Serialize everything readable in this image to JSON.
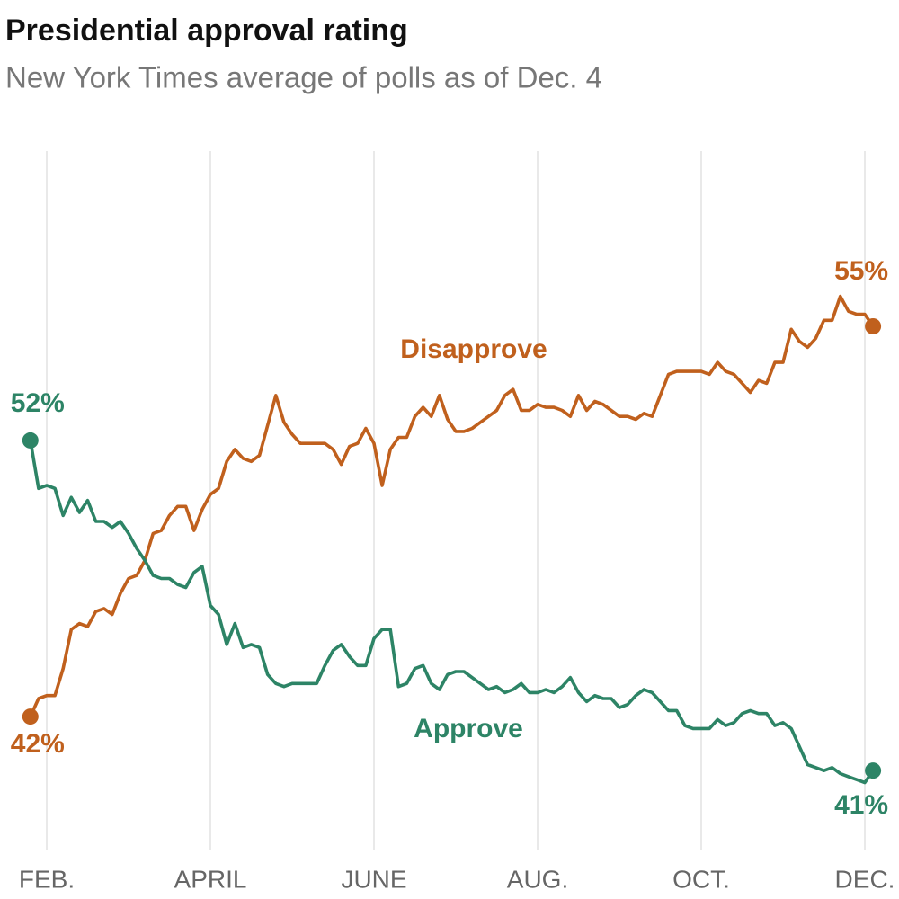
{
  "chart_data": {
    "type": "line",
    "title": "Presidential approval rating",
    "subtitle": "New York Times average of polls as of Dec. 4",
    "categories": [
      null,
      null,
      "FEB.",
      null,
      null,
      null,
      null,
      null,
      null,
      null,
      null,
      null,
      null,
      null,
      null,
      null,
      null,
      null,
      null,
      null,
      null,
      null,
      "APRIL",
      null,
      null,
      null,
      null,
      null,
      null,
      null,
      null,
      null,
      null,
      null,
      null,
      null,
      null,
      null,
      null,
      null,
      null,
      null,
      "JUNE",
      null,
      null,
      null,
      null,
      null,
      null,
      null,
      null,
      null,
      null,
      null,
      null,
      null,
      null,
      null,
      null,
      null,
      null,
      null,
      "AUG.",
      null,
      null,
      null,
      null,
      null,
      null,
      null,
      null,
      null,
      null,
      null,
      null,
      null,
      null,
      null,
      null,
      null,
      null,
      null,
      "OCT.",
      null,
      null,
      null,
      null,
      null,
      null,
      null,
      null,
      null,
      null,
      null,
      null,
      null,
      null,
      null,
      null,
      null,
      null,
      null,
      "DEC.",
      null
    ],
    "ylim": [
      38,
      61
    ],
    "grid": true,
    "series": [
      {
        "name": "Disapprove",
        "color": "#c0601d",
        "values": [
          42.4,
          43.0,
          43.1,
          43.1,
          44.0,
          45.3,
          45.5,
          45.4,
          45.9,
          46.0,
          45.8,
          46.5,
          47.0,
          47.1,
          47.6,
          48.5,
          48.6,
          49.1,
          49.4,
          49.4,
          48.6,
          49.3,
          49.8,
          50.0,
          50.9,
          51.3,
          51.0,
          50.9,
          51.1,
          52.1,
          53.1,
          52.2,
          51.8,
          51.5,
          51.5,
          51.5,
          51.5,
          51.3,
          50.8,
          51.4,
          51.5,
          52.0,
          51.5,
          50.1,
          51.3,
          51.7,
          51.7,
          52.4,
          52.7,
          52.4,
          53.1,
          52.3,
          51.9,
          51.9,
          52.0,
          52.2,
          52.4,
          52.6,
          53.1,
          53.3,
          52.6,
          52.6,
          52.8,
          52.7,
          52.7,
          52.6,
          52.4,
          53.1,
          52.6,
          52.9,
          52.8,
          52.6,
          52.4,
          52.4,
          52.3,
          52.5,
          52.4,
          53.1,
          53.8,
          53.9,
          53.9,
          53.9,
          53.9,
          53.8,
          54.2,
          53.9,
          53.8,
          53.5,
          53.2,
          53.6,
          53.5,
          54.2,
          54.2,
          55.3,
          54.9,
          54.7,
          55.0,
          55.6,
          55.6,
          56.4,
          55.9,
          55.8,
          55.8,
          55.4
        ],
        "value_labels": [
          "42%",
          null,
          null,
          null,
          null,
          null,
          null,
          null,
          null,
          null,
          null,
          null,
          null,
          null,
          null,
          null,
          null,
          null,
          null,
          null,
          null,
          null,
          null,
          null,
          null,
          null,
          null,
          null,
          null,
          null,
          null,
          null,
          null,
          null,
          null,
          null,
          null,
          null,
          null,
          null,
          null,
          null,
          null,
          null,
          null,
          null,
          null,
          null,
          null,
          null,
          null,
          null,
          null,
          null,
          null,
          null,
          null,
          null,
          null,
          null,
          null,
          null,
          null,
          null,
          null,
          null,
          null,
          null,
          null,
          null,
          null,
          null,
          null,
          null,
          null,
          null,
          null,
          null,
          null,
          null,
          null,
          null,
          null,
          null,
          null,
          null,
          null,
          null,
          null,
          null,
          null,
          null,
          null,
          null,
          null,
          null,
          null,
          null,
          null,
          null,
          null,
          null,
          null,
          "55%"
        ]
      },
      {
        "name": "Approve",
        "color": "#2d8466",
        "values": [
          51.6,
          50.0,
          50.1,
          50.0,
          49.1,
          49.7,
          49.2,
          49.6,
          48.9,
          48.9,
          48.7,
          48.9,
          48.5,
          48.0,
          47.6,
          47.1,
          47.0,
          47.0,
          46.8,
          46.7,
          47.2,
          47.4,
          46.1,
          45.8,
          44.8,
          45.5,
          44.7,
          44.8,
          44.7,
          43.8,
          43.5,
          43.4,
          43.5,
          43.5,
          43.5,
          43.5,
          44.1,
          44.6,
          44.8,
          44.4,
          44.1,
          44.1,
          45.0,
          45.3,
          45.3,
          43.4,
          43.5,
          44.0,
          44.1,
          43.5,
          43.3,
          43.8,
          43.9,
          43.9,
          43.7,
          43.5,
          43.3,
          43.4,
          43.2,
          43.3,
          43.5,
          43.2,
          43.2,
          43.3,
          43.2,
          43.4,
          43.7,
          43.2,
          42.9,
          43.1,
          43.0,
          43.0,
          42.7,
          42.8,
          43.1,
          43.3,
          43.2,
          42.9,
          42.6,
          42.6,
          42.1,
          42.0,
          42.0,
          42.0,
          42.3,
          42.1,
          42.2,
          42.5,
          42.6,
          42.5,
          42.5,
          42.1,
          42.2,
          42.0,
          41.4,
          40.8,
          40.7,
          40.6,
          40.7,
          40.5,
          40.4,
          40.3,
          40.2,
          40.6
        ],
        "value_labels": [
          "52%",
          null,
          null,
          null,
          null,
          null,
          null,
          null,
          null,
          null,
          null,
          null,
          null,
          null,
          null,
          null,
          null,
          null,
          null,
          null,
          null,
          null,
          null,
          null,
          null,
          null,
          null,
          null,
          null,
          null,
          null,
          null,
          null,
          null,
          null,
          null,
          null,
          null,
          null,
          null,
          null,
          null,
          null,
          null,
          null,
          null,
          null,
          null,
          null,
          null,
          null,
          null,
          null,
          null,
          null,
          null,
          null,
          null,
          null,
          null,
          null,
          null,
          null,
          null,
          null,
          null,
          null,
          null,
          null,
          null,
          null,
          null,
          null,
          null,
          null,
          null,
          null,
          null,
          null,
          null,
          null,
          null,
          null,
          null,
          null,
          null,
          null,
          null,
          null,
          null,
          null,
          null,
          null,
          null,
          null,
          null,
          null,
          null,
          null,
          null,
          null,
          null,
          null,
          "41%"
        ]
      }
    ]
  }
}
